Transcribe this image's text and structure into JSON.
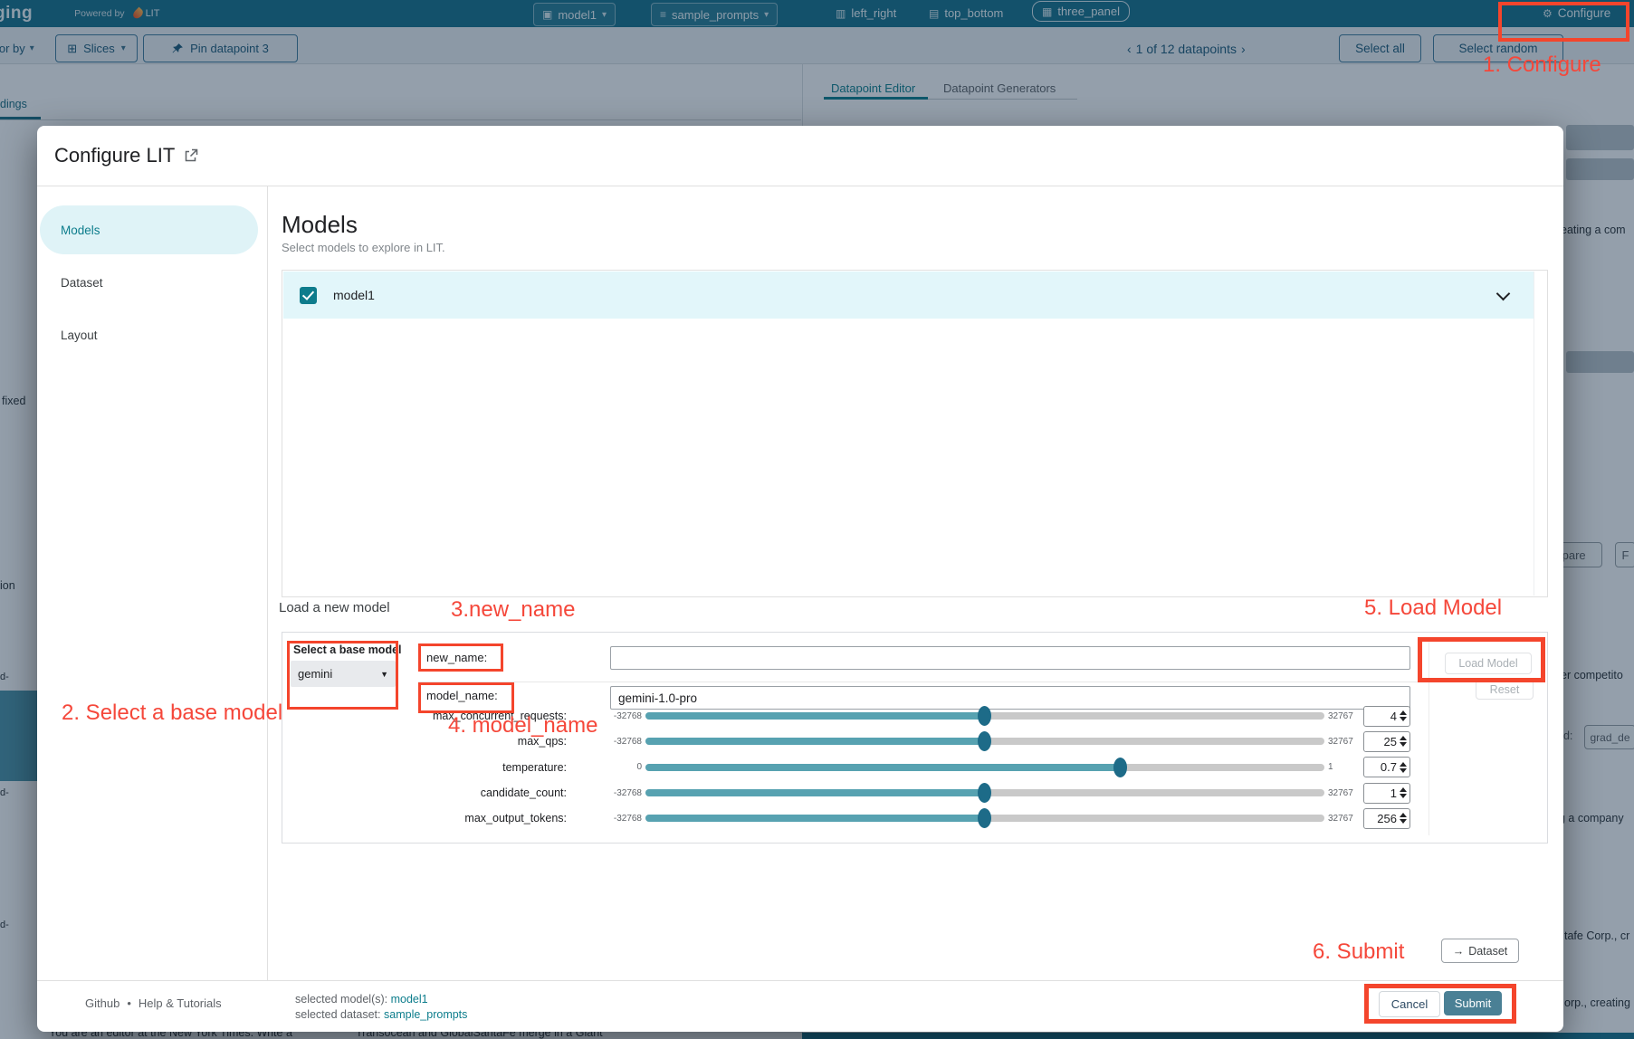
{
  "topbar": {
    "logo": "ging",
    "powered_by": "Powered by",
    "lit": "LIT",
    "model_selector": "model1",
    "dataset_selector": "sample_prompts",
    "layout_left_right": "left_right",
    "layout_top_bottom": "top_bottom",
    "layout_three_panel": "three_panel",
    "configure": "Configure"
  },
  "toolbar": {
    "color_by": "lor by",
    "slices": "Slices",
    "pin": "Pin datapoint 3",
    "prev": "‹",
    "pagination": "1 of 12 datapoints",
    "next": "›",
    "select_all": "Select all",
    "select_random": "Select random"
  },
  "background": {
    "left_tab": "dings",
    "fragments": [
      "fixed",
      "ion",
      "d-",
      "d-",
      "d-"
    ],
    "panel": {
      "tab_active": "Datapoint Editor",
      "tab_inactive": "Datapoint Generators",
      "header": "Datapoint Editor"
    },
    "right_fragments": {
      "f1": "eating a com",
      "f2": "npare",
      "f3": "F",
      "f4": "er competito",
      "f5": "od:",
      "f6": "grad_de",
      "f7": "g a company",
      "f8": "tafe Corp., cr",
      "f9": "orp., creating"
    },
    "bottom_texts": {
      "t1": "You are an editor at the New York Times. Write a",
      "t2": "Transocean and GlobalSantaFe merge in a Giant"
    }
  },
  "modal": {
    "title": "Configure LIT",
    "sidebar": [
      {
        "label": "Models",
        "active": true
      },
      {
        "label": "Dataset",
        "active": false
      },
      {
        "label": "Layout",
        "active": false
      }
    ],
    "models_section": {
      "heading": "Models",
      "subheading": "Select models to explore in LIT.",
      "model_row": {
        "label": "model1",
        "checked": true
      }
    },
    "load_section": {
      "heading": "Load a new model",
      "base_model_label": "Select a base model",
      "base_model_value": "gemini",
      "fields": [
        {
          "label": "new_name:",
          "value": ""
        },
        {
          "label": "model_name:",
          "value": "gemini-1.0-pro"
        }
      ],
      "sliders": [
        {
          "label": "max_concurrent_requests:",
          "min": "-32768",
          "max": "32767",
          "value": "4",
          "pct": 50
        },
        {
          "label": "max_qps:",
          "min": "-32768",
          "max": "32767",
          "value": "25",
          "pct": 50
        },
        {
          "label": "temperature:",
          "min": "0",
          "max": "1",
          "value": "0.7",
          "pct": 70
        },
        {
          "label": "candidate_count:",
          "min": "-32768",
          "max": "32767",
          "value": "1",
          "pct": 50
        },
        {
          "label": "max_output_tokens:",
          "min": "-32768",
          "max": "32767",
          "value": "256",
          "pct": 50
        }
      ],
      "load_model_button": "Load Model",
      "reset_button": "Reset"
    },
    "dataset_button": "Dataset",
    "footer": {
      "github": "Github",
      "separator": "•",
      "help": "Help & Tutorials",
      "selected_model_label": "selected model(s):",
      "selected_model": "model1",
      "selected_dataset_label": "selected dataset:",
      "selected_dataset": "sample_prompts",
      "cancel": "Cancel",
      "submit": "Submit"
    }
  },
  "annotations": [
    "1. Configure",
    "2. Select a base model",
    "3.new_name",
    "4. model_name",
    "5. Load Model",
    "6. Submit"
  ],
  "colors": {
    "accent": "#0d7d8c",
    "annotation_red": "#f5473a",
    "topbar_teal": "#17718c",
    "submit_teal": "#4a8095",
    "slider_fill": "#57a2b1",
    "slider_knob": "#1d6b88"
  }
}
